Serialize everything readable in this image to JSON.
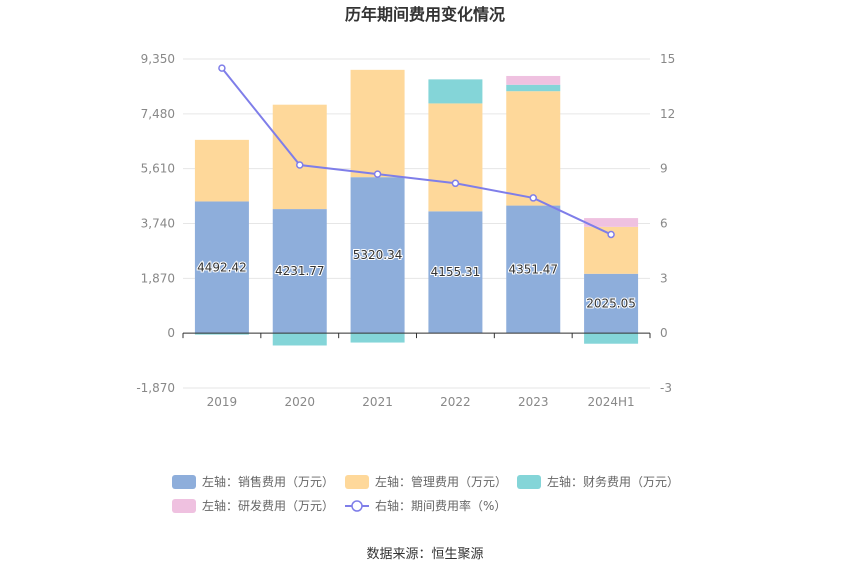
{
  "chart_data": {
    "type": "bar",
    "title": "历年期间费用变化情况",
    "categories": [
      "2019",
      "2020",
      "2021",
      "2022",
      "2023",
      "2024H1"
    ],
    "series": [
      {
        "name": "左轴：销售费用（万元）",
        "axis": "left",
        "kind": "bar",
        "color": "#8eaedb",
        "values": [
          4492.42,
          4231.77,
          5320.34,
          4155.31,
          4351.47,
          2025.05
        ]
      },
      {
        "name": "左轴：管理费用（万元）",
        "axis": "left",
        "kind": "bar",
        "color": "#fed89a",
        "values": [
          2100,
          3560,
          3660,
          3680,
          3900,
          1600
        ]
      },
      {
        "name": "左轴：财务费用（万元）",
        "axis": "left",
        "kind": "bar",
        "color": "#84d5d8",
        "values": [
          -50,
          -420,
          -320,
          820,
          220,
          -360
        ]
      },
      {
        "name": "左轴：研发费用（万元）",
        "axis": "left",
        "kind": "bar",
        "color": "#efc1e0",
        "values": [
          0,
          0,
          0,
          0,
          300,
          300
        ]
      },
      {
        "name": "右轴：期间费用率（%）",
        "axis": "right",
        "kind": "line",
        "color": "#7f7ee9",
        "values": [
          14.5,
          9.2,
          8.7,
          8.2,
          7.4,
          5.4
        ]
      }
    ],
    "bar_labels": [
      "4492.42",
      "4231.77",
      "5320.34",
      "4155.31",
      "4351.47",
      "2025.05"
    ],
    "left_axis": {
      "min": -1870,
      "max": 9350,
      "ticks": [
        -1870,
        0,
        1870,
        3740,
        5610,
        7480,
        9350
      ],
      "tick_labels": [
        "-1,870",
        "0",
        "1,870",
        "3,740",
        "5,610",
        "7,480",
        "9,350"
      ]
    },
    "right_axis": {
      "min": -3,
      "max": 15,
      "ticks": [
        -3,
        0,
        3,
        6,
        9,
        12,
        15
      ],
      "tick_labels": [
        "-3",
        "0",
        "3",
        "6",
        "9",
        "12",
        "15"
      ]
    },
    "grid": true,
    "legend_position": "bottom"
  },
  "source": "数据来源：恒生聚源"
}
